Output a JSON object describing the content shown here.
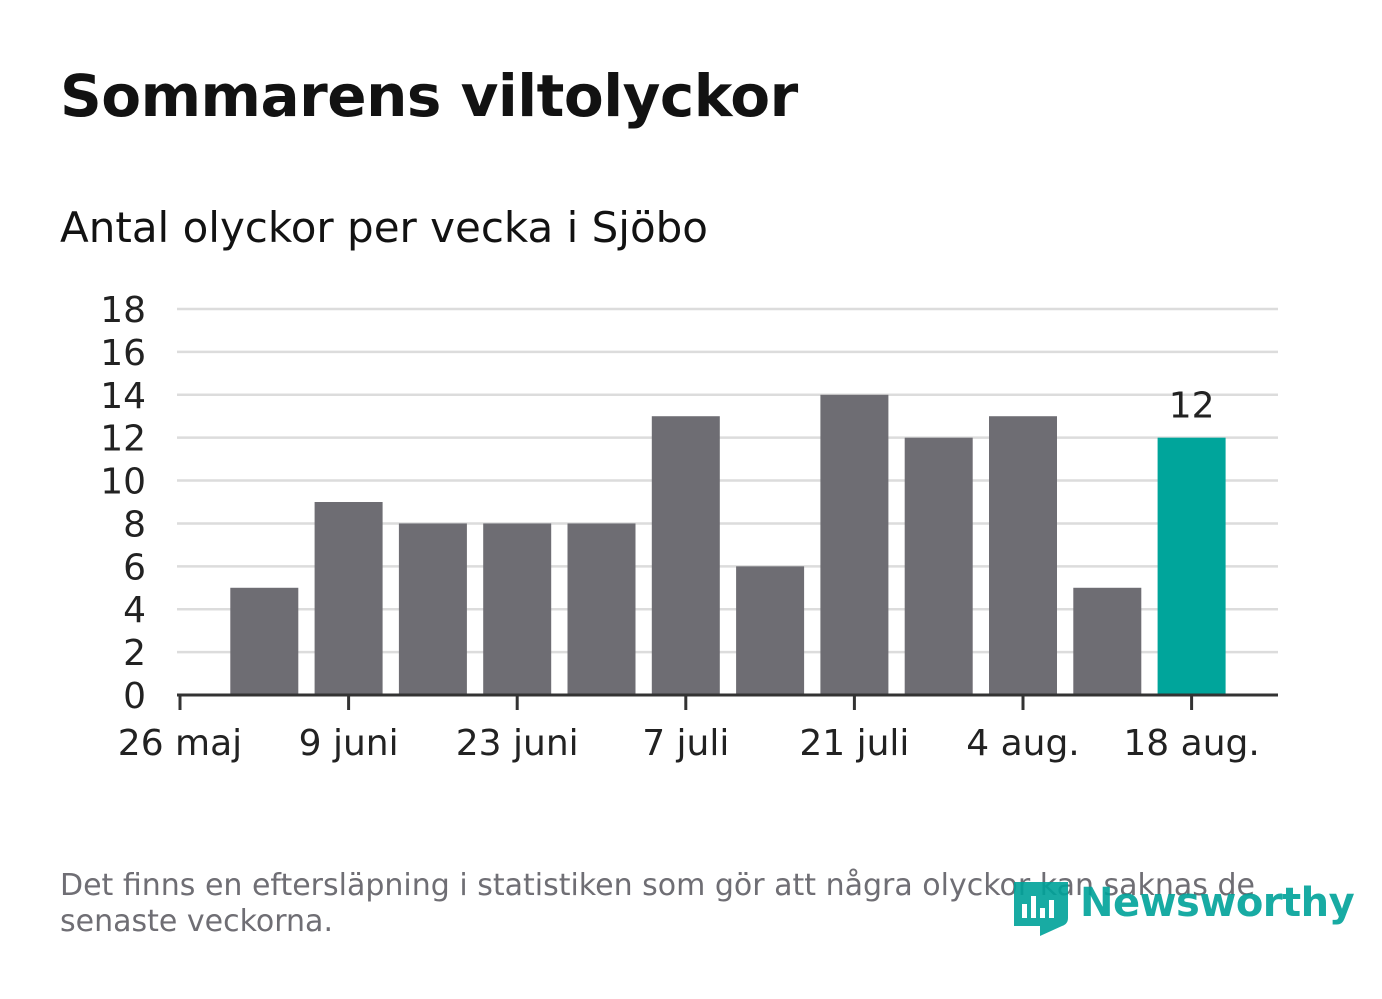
{
  "title": "Sommarens viltolyckor",
  "subtitle": "Antal olyckor per vecka i Sjöbo",
  "note": "Det finns en eftersläpning i statistiken som gör att några olyckor kan saknas de senaste veckorna.",
  "brand": {
    "name": "Newsworthy",
    "color": "#00a39a"
  },
  "colors": {
    "bar": "#6e6d73",
    "highlight": "#00a59b",
    "grid": "#dcdcdc",
    "axis": "#333333"
  },
  "chart_data": {
    "type": "bar",
    "x": [
      "2019-06-02",
      "2019-06-09",
      "2019-06-16",
      "2019-06-23",
      "2019-06-30",
      "2019-07-07",
      "2019-07-14",
      "2019-07-21",
      "2019-07-28",
      "2019-08-04",
      "2019-08-11",
      "2019-08-18"
    ],
    "values": [
      5,
      9,
      8,
      8,
      8,
      13,
      6,
      14,
      12,
      13,
      5,
      12
    ],
    "highlight_index": 11,
    "data_labels": [
      {
        "index": 11,
        "text": "12"
      }
    ],
    "ylim": [
      0,
      18
    ],
    "yticks": [
      0,
      2,
      4,
      6,
      8,
      10,
      12,
      14,
      16,
      18
    ],
    "xticks": [
      {
        "date": "2019-05-26",
        "label": "26 maj"
      },
      {
        "date": "2019-06-09",
        "label": "9 juni"
      },
      {
        "date": "2019-06-23",
        "label": "23 juni"
      },
      {
        "date": "2019-07-07",
        "label": "7 juli"
      },
      {
        "date": "2019-07-21",
        "label": "21 juli"
      },
      {
        "date": "2019-08-04",
        "label": "4 aug."
      },
      {
        "date": "2019-08-18",
        "label": "18 aug."
      }
    ],
    "grid": true,
    "legend": "none"
  }
}
